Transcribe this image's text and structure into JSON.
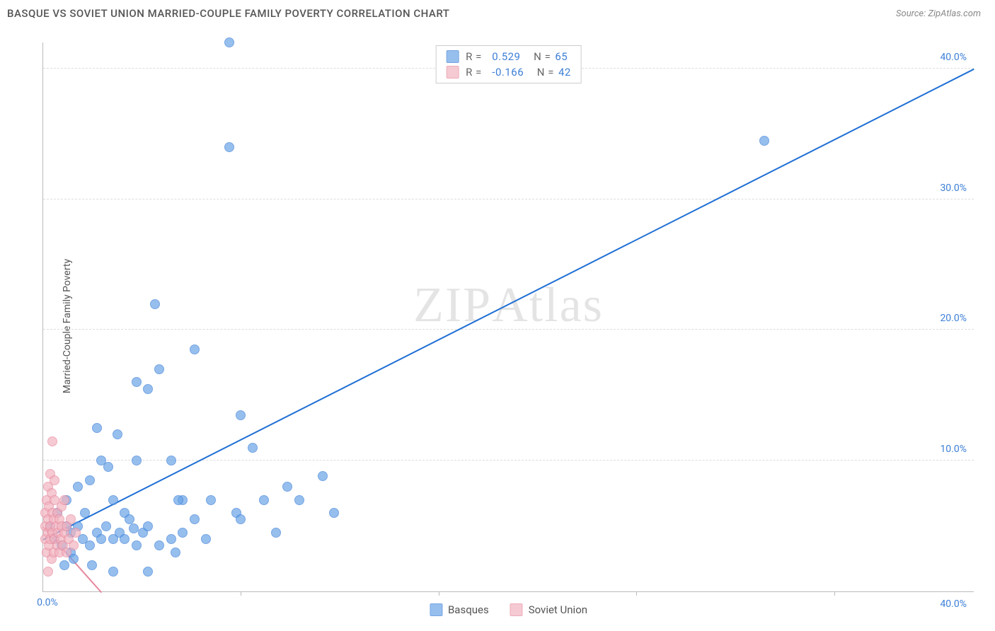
{
  "title": "BASQUE VS SOVIET UNION MARRIED-COUPLE FAMILY POVERTY CORRELATION CHART",
  "source_label": "Source:",
  "source_name": "ZipAtlas.com",
  "ylabel": "Married-Couple Family Poverty",
  "watermark_a": "ZIP",
  "watermark_b": "Atlas",
  "chart": {
    "type": "scatter",
    "xlim": [
      0,
      40
    ],
    "ylim": [
      0,
      42
    ],
    "x_origin_label": "0.0%",
    "x_end_label": "40.0%",
    "xtick_positions": [
      8.5,
      17,
      25.5,
      34
    ],
    "ytick_labels": [
      "10.0%",
      "20.0%",
      "30.0%",
      "40.0%"
    ],
    "ytick_values": [
      10,
      20,
      30,
      40
    ],
    "grid_color": "#dddddd",
    "axis_color": "#bbbbbb",
    "background_color": "#ffffff",
    "point_radius": 7,
    "point_border_width": 1.2,
    "point_fill_opacity": 0.35
  },
  "series": [
    {
      "name": "Basques",
      "color": "#6aa5e8",
      "border": "#3d7fd6",
      "trend_color": "#1f6fd4",
      "trend": {
        "x1": 0,
        "y1": 4.0,
        "x2": 40,
        "y2": 40.0
      },
      "R": "0.529",
      "N": "65",
      "points": [
        [
          0.3,
          5
        ],
        [
          0.5,
          4
        ],
        [
          0.6,
          6
        ],
        [
          0.8,
          3.5
        ],
        [
          1,
          5
        ],
        [
          1,
          7
        ],
        [
          1.2,
          4.5
        ],
        [
          1.2,
          3
        ],
        [
          1.5,
          8
        ],
        [
          1.5,
          5
        ],
        [
          1.7,
          4
        ],
        [
          1.8,
          6
        ],
        [
          2,
          3.5
        ],
        [
          2,
          8.5
        ],
        [
          2.3,
          4.5
        ],
        [
          2.3,
          12.5
        ],
        [
          2.5,
          4
        ],
        [
          2.5,
          10
        ],
        [
          2.7,
          5
        ],
        [
          3,
          4
        ],
        [
          3,
          7
        ],
        [
          3,
          1.5
        ],
        [
          3.3,
          4.5
        ],
        [
          3.5,
          6
        ],
        [
          3.5,
          4
        ],
        [
          3.7,
          5.5
        ],
        [
          4,
          3.5
        ],
        [
          4,
          10
        ],
        [
          4,
          16
        ],
        [
          4.3,
          4.5
        ],
        [
          4.5,
          15.5
        ],
        [
          4.5,
          5
        ],
        [
          4.8,
          22
        ],
        [
          5,
          3.5
        ],
        [
          5,
          17
        ],
        [
          5.5,
          4
        ],
        [
          5.5,
          10
        ],
        [
          5.7,
          3
        ],
        [
          6,
          4.5
        ],
        [
          6,
          7
        ],
        [
          6.5,
          18.5
        ],
        [
          6.5,
          5.5
        ],
        [
          7,
          4
        ],
        [
          7.2,
          7
        ],
        [
          8,
          42
        ],
        [
          8,
          34
        ],
        [
          8.3,
          6
        ],
        [
          8.5,
          13.5
        ],
        [
          8.5,
          5.5
        ],
        [
          9,
          11
        ],
        [
          9.5,
          7
        ],
        [
          10,
          4.5
        ],
        [
          10.5,
          8
        ],
        [
          11,
          7
        ],
        [
          12,
          8.8
        ],
        [
          12.5,
          6
        ],
        [
          31,
          34.5
        ],
        [
          4.5,
          1.5
        ],
        [
          2.8,
          9.5
        ],
        [
          3.2,
          12
        ],
        [
          1.3,
          2.5
        ],
        [
          0.9,
          2
        ],
        [
          2.1,
          2
        ],
        [
          5.8,
          7
        ],
        [
          3.9,
          4.8
        ]
      ]
    },
    {
      "name": "Soviet Union",
      "color": "#f2b4c0",
      "border": "#e7899e",
      "trend_color": "#e7899e",
      "trend": {
        "x1": 0,
        "y1": 5.0,
        "x2": 2.5,
        "y2": 0
      },
      "R": "-0.166",
      "N": "42",
      "points": [
        [
          0.1,
          4
        ],
        [
          0.1,
          5
        ],
        [
          0.1,
          6
        ],
        [
          0.15,
          3
        ],
        [
          0.15,
          7
        ],
        [
          0.2,
          4.5
        ],
        [
          0.2,
          5.5
        ],
        [
          0.2,
          8
        ],
        [
          0.25,
          3.5
        ],
        [
          0.25,
          6.5
        ],
        [
          0.3,
          4
        ],
        [
          0.3,
          9
        ],
        [
          0.3,
          5
        ],
        [
          0.35,
          2.5
        ],
        [
          0.35,
          7.5
        ],
        [
          0.4,
          4.5
        ],
        [
          0.4,
          6
        ],
        [
          0.4,
          11.5
        ],
        [
          0.45,
          3
        ],
        [
          0.45,
          5.5
        ],
        [
          0.5,
          4
        ],
        [
          0.5,
          7
        ],
        [
          0.5,
          8.5
        ],
        [
          0.55,
          5
        ],
        [
          0.6,
          3.5
        ],
        [
          0.6,
          6
        ],
        [
          0.65,
          4.5
        ],
        [
          0.7,
          5.5
        ],
        [
          0.7,
          3
        ],
        [
          0.75,
          4
        ],
        [
          0.8,
          6.5
        ],
        [
          0.8,
          5
        ],
        [
          0.85,
          3.5
        ],
        [
          0.9,
          4.5
        ],
        [
          0.9,
          7
        ],
        [
          1,
          5
        ],
        [
          1,
          3
        ],
        [
          1.1,
          4
        ],
        [
          1.2,
          5.5
        ],
        [
          1.3,
          3.5
        ],
        [
          1.4,
          4.5
        ],
        [
          0.2,
          1.5
        ]
      ]
    }
  ],
  "legend_top": [
    {
      "swatch": "basques",
      "R": "0.529",
      "N": "65",
      "val_color": "#3d7fd6"
    },
    {
      "swatch": "soviet",
      "R": "-0.166",
      "N": "42",
      "val_color": "#3d7fd6"
    }
  ],
  "legend_bottom": [
    {
      "label": "Basques",
      "swatch": "basques"
    },
    {
      "label": "Soviet Union",
      "swatch": "soviet"
    }
  ],
  "colors": {
    "text": "#555555",
    "value": "#3d7fd6",
    "basques_fill": "#b9d3f4",
    "basques_border": "#6aa5e8",
    "soviet_fill": "#f9d5dd",
    "soviet_border": "#f2b4c0"
  }
}
